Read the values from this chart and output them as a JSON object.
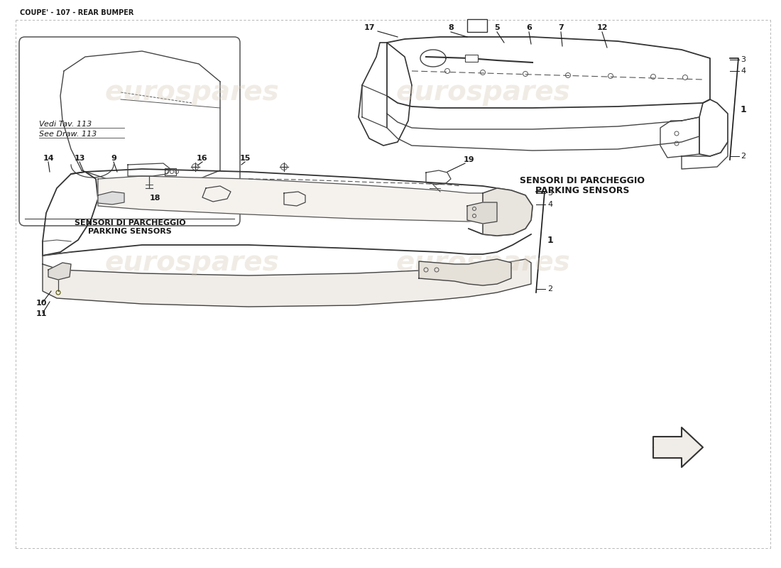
{
  "title": "COUPE' - 107 - REAR BUMPER",
  "bg": "#ffffff",
  "lc": "#1a1a1a",
  "lbl": "#1a1a1a",
  "wm": "#d4c9b5",
  "parking_it": "SENSORI DI PARCHEGGIO",
  "parking_en": "PARKING SENSORS",
  "vedi_tav": "Vedi Tav. 113",
  "see_draw": "See Draw. 113"
}
